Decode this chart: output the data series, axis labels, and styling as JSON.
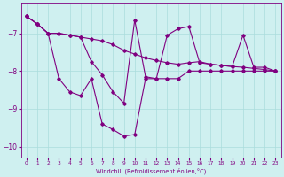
{
  "xlabel": "Windchill (Refroidissement éolien,°C)",
  "background_color": "#cff0f0",
  "line_color": "#800080",
  "grid_color": "#aadddd",
  "ylim": [
    -10.3,
    -6.2
  ],
  "xlim": [
    -0.5,
    23.5
  ],
  "yticks": [
    -10,
    -9,
    -8,
    -7
  ],
  "xticks": [
    0,
    1,
    2,
    3,
    4,
    5,
    6,
    7,
    8,
    9,
    10,
    11,
    12,
    13,
    14,
    15,
    16,
    17,
    18,
    19,
    20,
    21,
    22,
    23
  ],
  "series1_x": [
    0,
    1,
    2,
    3,
    4,
    5,
    6,
    7,
    8,
    9,
    10,
    11,
    12,
    13,
    14,
    15,
    16,
    17,
    18,
    19,
    20,
    21,
    22,
    23
  ],
  "series1_y": [
    -6.55,
    -6.75,
    -7.0,
    -7.0,
    -7.05,
    -7.1,
    -7.15,
    -7.2,
    -7.3,
    -7.45,
    -7.55,
    -7.65,
    -7.72,
    -7.78,
    -7.82,
    -7.78,
    -7.75,
    -7.82,
    -7.85,
    -7.88,
    -7.9,
    -7.93,
    -7.96,
    -8.0
  ],
  "series2_x": [
    0,
    1,
    2,
    3,
    4,
    5,
    6,
    7,
    8,
    9,
    10,
    11,
    12,
    13,
    14,
    15,
    16,
    17,
    18,
    19,
    20,
    21,
    22,
    23
  ],
  "series2_y": [
    -6.55,
    -6.75,
    -7.0,
    -7.0,
    -7.05,
    -7.1,
    -7.75,
    -8.1,
    -8.55,
    -8.85,
    -6.65,
    -8.15,
    -8.2,
    -7.05,
    -6.88,
    -6.82,
    -7.78,
    -7.82,
    -7.85,
    -7.88,
    -7.05,
    -7.9,
    -7.9,
    -8.0
  ],
  "series3_x": [
    0,
    1,
    2,
    3,
    4,
    5,
    6,
    7,
    8,
    9,
    10,
    11,
    12,
    13,
    14,
    15,
    16,
    17,
    18,
    19,
    20,
    21,
    22,
    23
  ],
  "series3_y": [
    -6.55,
    -6.75,
    -7.0,
    -8.2,
    -8.55,
    -8.65,
    -8.2,
    -9.4,
    -9.55,
    -9.72,
    -9.68,
    -8.2,
    -8.2,
    -8.2,
    -8.2,
    -8.0,
    -8.0,
    -8.0,
    -8.0,
    -8.0,
    -8.0,
    -8.0,
    -8.0,
    -8.0
  ]
}
